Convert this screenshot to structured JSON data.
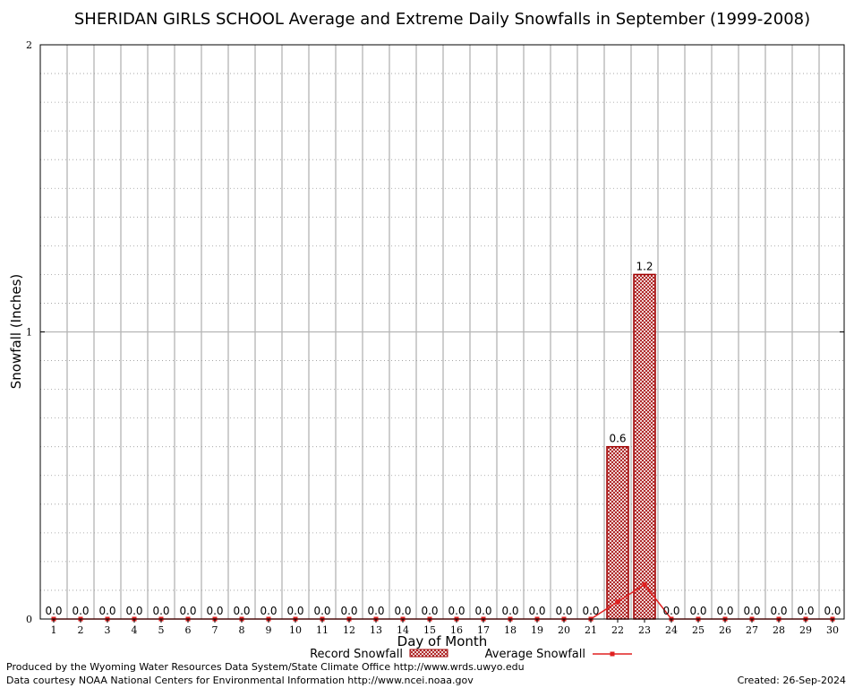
{
  "chart_data": {
    "type": "bar",
    "title": "SHERIDAN GIRLS SCHOOL Average and Extreme Daily Snowfalls in September (1999-2008)",
    "xlabel": "Day of Month",
    "ylabel": "Snowfall (Inches)",
    "ylim": [
      0,
      2
    ],
    "yticks": [
      0,
      1,
      2
    ],
    "grid": true,
    "categories": [
      "1",
      "2",
      "3",
      "4",
      "5",
      "6",
      "7",
      "8",
      "9",
      "10",
      "11",
      "12",
      "13",
      "14",
      "15",
      "16",
      "17",
      "18",
      "19",
      "20",
      "21",
      "22",
      "23",
      "24",
      "25",
      "26",
      "27",
      "28",
      "29",
      "30"
    ],
    "series": [
      {
        "name": "Record Snowfall",
        "type": "bar",
        "color": "#a00000",
        "values": [
          0,
          0,
          0,
          0,
          0,
          0,
          0,
          0,
          0,
          0,
          0,
          0,
          0,
          0,
          0,
          0,
          0,
          0,
          0,
          0,
          0,
          0.6,
          1.2,
          0,
          0,
          0,
          0,
          0,
          0,
          0
        ]
      },
      {
        "name": "Average Snowfall",
        "type": "line",
        "color": "#e02020",
        "values": [
          0,
          0,
          0,
          0,
          0,
          0,
          0,
          0,
          0,
          0,
          0,
          0,
          0,
          0,
          0,
          0,
          0,
          0,
          0,
          0,
          0,
          0.06,
          0.12,
          0,
          0,
          0,
          0,
          0,
          0,
          0
        ]
      }
    ],
    "data_labels": [
      "0.0",
      "0.0",
      "0.0",
      "0.0",
      "0.0",
      "0.0",
      "0.0",
      "0.0",
      "0.0",
      "0.0",
      "0.0",
      "0.0",
      "0.0",
      "0.0",
      "0.0",
      "0.0",
      "0.0",
      "0.0",
      "0.0",
      "0.0",
      "0.0",
      "0.6",
      "1.2",
      "0.0",
      "0.0",
      "0.0",
      "0.0",
      "0.0",
      "0.0",
      "0.0"
    ],
    "legend_position": "bottom"
  },
  "footer": {
    "produced_by": "Produced by the Wyoming Water Resources Data System/State Climate Office http://www.wrds.uwyo.edu",
    "data_courtesy": "Data courtesy NOAA National Centers for Environmental Information http://www.ncei.noaa.gov",
    "created": "Created:  26-Sep-2024"
  }
}
